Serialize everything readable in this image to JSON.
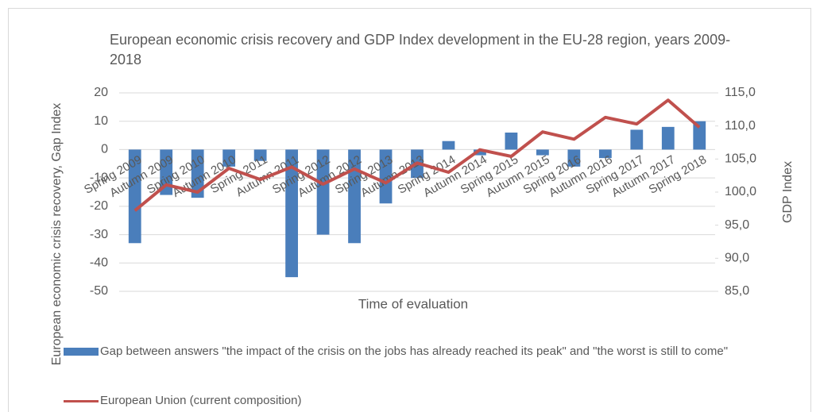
{
  "chart_data": {
    "type": "bar_line",
    "title": "European economic crisis recovery and GDP Index development in the EU-28 region, years 2009-2018",
    "x_label": "Time of evaluation",
    "y_label": "European economic crisis recovery, Gap Index",
    "y2_label": "GDP Index",
    "categories": [
      "Spring 2009",
      "Autumn 2009",
      "Spring 2010",
      "Autumn 2010",
      "Spring 2011",
      "Autumn 2011",
      "Spring 2012",
      "Autumn 2012",
      "Spring 2013",
      "Autumn 2013",
      "Spring 2014",
      "Autumn 2014",
      "Spring 2015",
      "Autumn 2015",
      "Spring 2016",
      "Autumn 2016",
      "Spring 2017",
      "Autumn 2017",
      "Spring 2018"
    ],
    "series": [
      {
        "name": "Gap between answers \"the impact of the crisis on the jobs has already reached its peak\" and \"the worst is still to come\"",
        "color": "#4a7ebb",
        "kind": "bar",
        "values": [
          -33,
          -16,
          -17,
          -6,
          -4,
          -45,
          -30,
          -33,
          -19,
          -10,
          3,
          -2,
          6,
          -2,
          -6,
          -3,
          7,
          8,
          10
        ]
      },
      {
        "name": "European Union (current composition)",
        "color": "#c0504d",
        "kind": "line",
        "axis": "y2",
        "values": [
          97.2,
          101.1,
          100.0,
          103.6,
          101.9,
          103.8,
          101.2,
          103.5,
          101.4,
          104.4,
          103.0,
          106.4,
          105.4,
          109.1,
          108.0,
          111.3,
          110.3,
          113.9,
          109.8
        ]
      }
    ],
    "ylim": [
      -50,
      20
    ],
    "yticks": [
      -50,
      -40,
      -30,
      -20,
      -10,
      0,
      10,
      20
    ],
    "y2lim": [
      85,
      115
    ],
    "y2ticks": [
      {
        "value": 85,
        "label": "85,0"
      },
      {
        "value": 90,
        "label": "90,0"
      },
      {
        "value": 95,
        "label": "95,0"
      },
      {
        "value": 100,
        "label": "100,0"
      },
      {
        "value": 105,
        "label": "105,0"
      },
      {
        "value": 110,
        "label": "110,0"
      },
      {
        "value": 115,
        "label": "115,0"
      }
    ]
  }
}
